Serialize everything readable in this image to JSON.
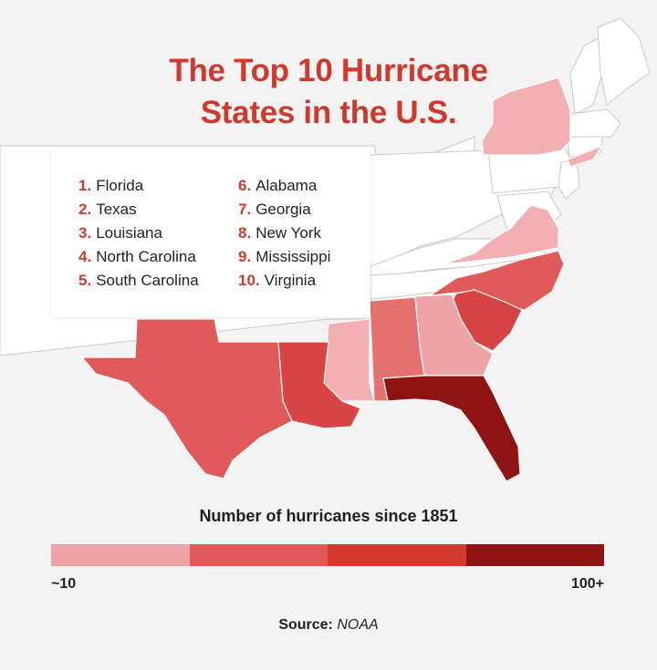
{
  "title": {
    "line1": "The Top 10 Hurricane",
    "line2": "States in the U.S."
  },
  "rankings": [
    {
      "rank": "1.",
      "state": "Florida"
    },
    {
      "rank": "2.",
      "state": "Texas"
    },
    {
      "rank": "3.",
      "state": "Louisiana"
    },
    {
      "rank": "4.",
      "state": "North Carolina"
    },
    {
      "rank": "5.",
      "state": "South Carolina"
    },
    {
      "rank": "6.",
      "state": "Alabama"
    },
    {
      "rank": "7.",
      "state": "Georgia"
    },
    {
      "rank": "8.",
      "state": "New York"
    },
    {
      "rank": "9.",
      "state": "Mississippi"
    },
    {
      "rank": "10.",
      "state": "Virginia"
    }
  ],
  "scale": {
    "title": "Number of hurricanes since 1851",
    "min_label": "~10",
    "max_label": "100+",
    "colors": [
      "#f0a3a6",
      "#e05a5a",
      "#d13a2c",
      "#8e1414"
    ]
  },
  "source": {
    "label": "Source:",
    "value": "NOAA"
  },
  "colors": {
    "accent": "#d0392b",
    "background": "#f3f3f3",
    "state_outline": "#ffffff",
    "base_state": "#ffffff"
  },
  "map": {
    "highlighted_states": [
      {
        "state": "Florida",
        "color": "#8e1414"
      },
      {
        "state": "Texas",
        "color": "#e05a5a"
      },
      {
        "state": "Louisiana",
        "color": "#d94545"
      },
      {
        "state": "North Carolina",
        "color": "#e05a5a"
      },
      {
        "state": "South Carolina",
        "color": "#d84444"
      },
      {
        "state": "Alabama",
        "color": "#e67070"
      },
      {
        "state": "Georgia",
        "color": "#f0a3a6"
      },
      {
        "state": "New York",
        "color": "#f3b0b3"
      },
      {
        "state": "Mississippi",
        "color": "#f3b0b3"
      },
      {
        "state": "Virginia",
        "color": "#f3b0b3"
      }
    ]
  }
}
